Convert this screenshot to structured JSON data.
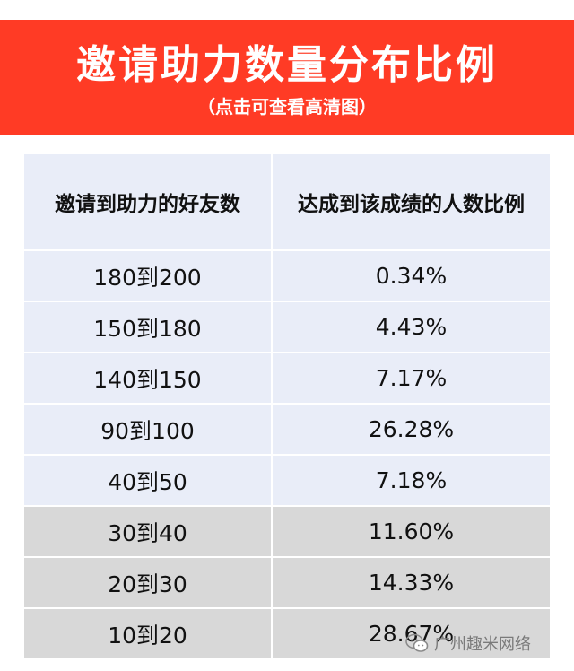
{
  "banner": {
    "title": "邀请助力数量分布比例",
    "subtitle": "（点击可查看高清图）",
    "color": "#ff3b25"
  },
  "table": {
    "headers": [
      "邀请到助力的好友数",
      "达成到该成绩的人数比例"
    ],
    "rows": [
      {
        "range": "180到200",
        "ratio": "0.34%"
      },
      {
        "range": "150到180",
        "ratio": "4.43%"
      },
      {
        "range": "140到150",
        "ratio": "7.17%"
      },
      {
        "range": "90到100",
        "ratio": "26.28%"
      },
      {
        "range": "40到50",
        "ratio": "7.18%"
      },
      {
        "range": "30到40",
        "ratio": "11.60%"
      },
      {
        "range": "20到30",
        "ratio": "14.33%"
      },
      {
        "range": "10到20",
        "ratio": "28.67%"
      }
    ],
    "light_color": "#e9edf8",
    "gray_color": "#d8d8d8"
  },
  "watermark": {
    "text": "广州趣米网络",
    "icon": "wechat-icon"
  }
}
